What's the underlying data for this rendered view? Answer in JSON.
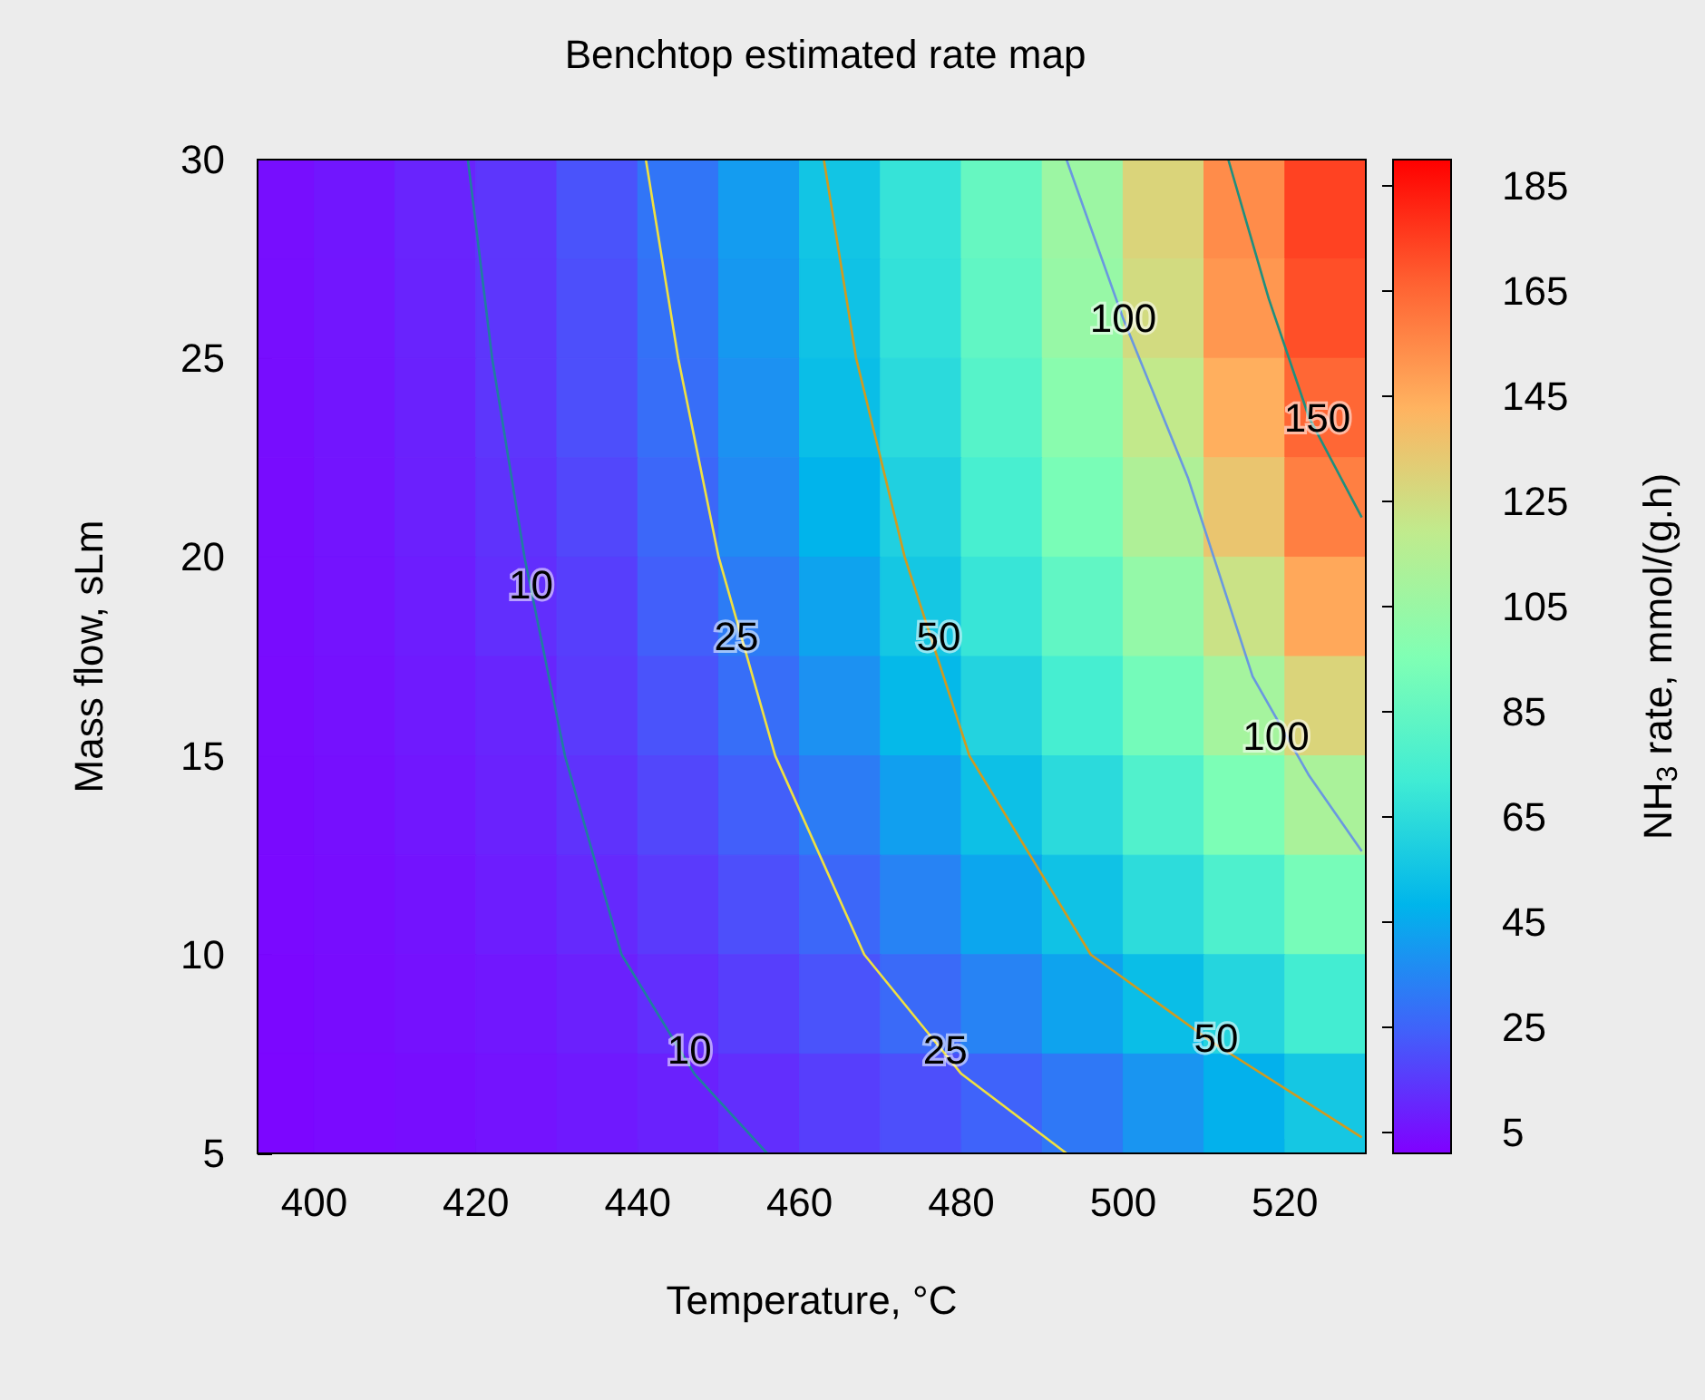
{
  "chart_data": {
    "type": "heatmap",
    "title": "Benchtop estimated rate map",
    "xlabel": "Temperature, °C",
    "ylabel": "Mass flow, sLm",
    "clabel": "NH$_{3}$ rate, mmol/(g.h)",
    "x": [
      395,
      405,
      415,
      425,
      435,
      445,
      455,
      465,
      475,
      485,
      495,
      505,
      515,
      525
    ],
    "y": [
      28.75,
      26.25,
      23.75,
      21.25,
      18.75,
      16.25,
      13.75,
      11.25,
      8.75,
      6.25
    ],
    "cells": [
      [
        4.3,
        6.4,
        9.6,
        14,
        21,
        30,
        41,
        55,
        68,
        86,
        106,
        129,
        154,
        174
      ],
      [
        4.3,
        6.3,
        9.4,
        14,
        20,
        29,
        40,
        54,
        67,
        84,
        104,
        126,
        151,
        171
      ],
      [
        4.2,
        6.1,
        9.0,
        14,
        20,
        28,
        38,
        52,
        64,
        80,
        99,
        120,
        144,
        165
      ],
      [
        4.0,
        5.9,
        8.6,
        13,
        18,
        26,
        36,
        48,
        60,
        75,
        93,
        113,
        135,
        158
      ],
      [
        3.8,
        5.5,
        8.0,
        12,
        16,
        24,
        32,
        43,
        56,
        69,
        84,
        103,
        123,
        146
      ],
      [
        3.6,
        5.1,
        7.3,
        10,
        15,
        21,
        28,
        38,
        50,
        61,
        74,
        91,
        109,
        129
      ],
      [
        3.4,
        4.7,
        6.5,
        9.1,
        13,
        18,
        24,
        32,
        42,
        53,
        64,
        78,
        94,
        111
      ],
      [
        3.1,
        4.2,
        5.7,
        7.9,
        11,
        15,
        20,
        26,
        34,
        44,
        54,
        65,
        77,
        92
      ],
      [
        2.8,
        3.8,
        5.0,
        6.6,
        8.8,
        12,
        16,
        21,
        27,
        34,
        43,
        52,
        62,
        73
      ],
      [
        2.5,
        3.3,
        4.2,
        5.5,
        7.1,
        9.0,
        12,
        16,
        20,
        25,
        31,
        39,
        47,
        56
      ]
    ],
    "xlim": [
      393,
      530
    ],
    "xticks": [
      400,
      420,
      440,
      460,
      480,
      500,
      520
    ],
    "ylim": [
      5,
      30
    ],
    "yticks": [
      5,
      10,
      15,
      20,
      25,
      30
    ],
    "clim": [
      1,
      190
    ],
    "cticks": [
      5,
      25,
      45,
      65,
      85,
      105,
      125,
      145,
      165,
      185
    ],
    "marker": "none",
    "series": [
      {
        "type": "line",
        "color": "#1f7f9f",
        "x": [
          419,
          422,
          426,
          431,
          438,
          447,
          456
        ],
        "values": [
          30,
          25,
          20,
          15,
          10,
          7,
          5
        ]
      },
      {
        "type": "line",
        "color": "#f0e040",
        "x": [
          441,
          445,
          450,
          457,
          468,
          480,
          493
        ],
        "values": [
          30,
          25,
          20,
          15,
          10,
          7,
          5
        ]
      },
      {
        "type": "line",
        "color": "#d09a20",
        "x": [
          463,
          467,
          473,
          481,
          496,
          511,
          529.5
        ],
        "values": [
          30,
          25,
          20,
          15,
          10,
          7.8,
          5.4
        ]
      },
      {
        "type": "line",
        "color": "#6a98e0",
        "x": [
          493,
          500,
          508,
          516,
          523,
          529.5
        ],
        "values": [
          30,
          26,
          22,
          17,
          14.5,
          12.6
        ]
      },
      {
        "type": "line",
        "color": "#1f8f7f",
        "x": [
          513,
          518,
          523,
          529.5
        ],
        "values": [
          30,
          26.5,
          23.5,
          21
        ]
      }
    ],
    "annotations": [
      {
        "text": "10",
        "x": 426.8,
        "y": 19.3
      },
      {
        "text": "25",
        "x": 452.2,
        "y": 18
      },
      {
        "text": "50",
        "x": 477.2,
        "y": 18
      },
      {
        "text": "100",
        "x": 500,
        "y": 26
      },
      {
        "text": "150",
        "x": 524,
        "y": 23.5
      },
      {
        "text": "100",
        "x": 518.9,
        "y": 15.5
      },
      {
        "text": "10",
        "x": 446.4,
        "y": 7.6
      },
      {
        "text": "25",
        "x": 478,
        "y": 7.6
      },
      {
        "text": "50",
        "x": 511.5,
        "y": 7.9
      }
    ]
  }
}
